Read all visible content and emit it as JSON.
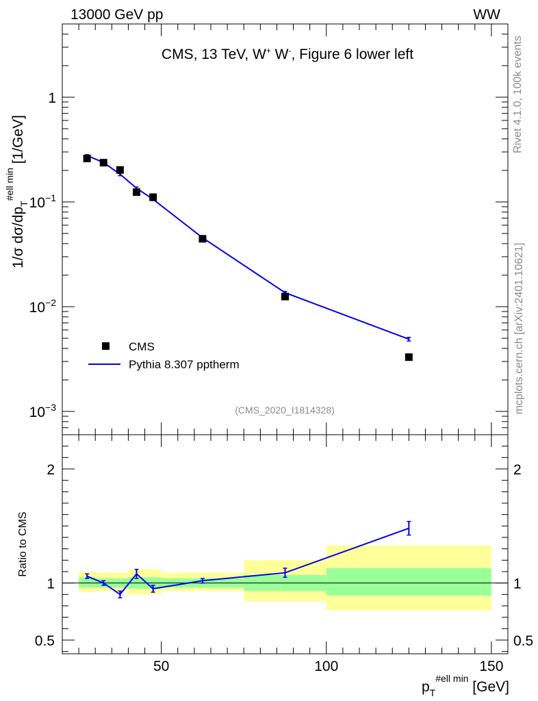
{
  "header": {
    "left": "13000 GeV pp",
    "right": "WW"
  },
  "side_labels": {
    "rivet": "Rivet 4.1.0,  100k events",
    "source": "mcplots.cern.ch [arXiv:2401.10621]"
  },
  "analysis_id": "(CMS_2020_I1814328)",
  "colors": {
    "data": "#000000",
    "mc": "#0000ee",
    "band_inner": "#99ff99",
    "band_outer": "#ffff99"
  },
  "chart_data": [
    {
      "type": "scatter",
      "panel": "main",
      "title": "CMS, 13 TeV, W⁺ W⁻, Figure 6 lower left",
      "xlabel": "p_T^{#ell min} [GeV]",
      "ylabel": "1/σ dσ/dp_T^{#ell min} [1/GeV]",
      "ylabel_parts": {
        "main": "1/σ dσ/dp",
        "sub": "T",
        "sup": "#ell min",
        "unit": "[1/GeV]"
      },
      "xlim": [
        20,
        155
      ],
      "ylim": [
        0.0006,
        5
      ],
      "yscale": "log",
      "yticks": [
        {
          "value": 1,
          "label": "1"
        },
        {
          "value": 0.1,
          "label": "10",
          "exp": "−1"
        },
        {
          "value": 0.01,
          "label": "10",
          "exp": "−2"
        },
        {
          "value": 0.001,
          "label": "10",
          "exp": "−3"
        }
      ],
      "legend": {
        "position": "bottom-left",
        "entries": [
          {
            "label": "CMS",
            "style": "marker"
          },
          {
            "label": "Pythia 8.307 pptherm",
            "style": "line"
          }
        ]
      },
      "series": [
        {
          "name": "CMS",
          "style": "marker",
          "x": [
            27.5,
            32.5,
            37.5,
            42.5,
            47.5,
            62.5,
            87.5,
            125
          ],
          "values": [
            0.26,
            0.237,
            0.202,
            0.124,
            0.111,
            0.0445,
            0.0125,
            0.0033
          ]
        },
        {
          "name": "Pythia 8.307 pptherm",
          "style": "line",
          "x": [
            27.5,
            32.5,
            37.5,
            42.5,
            47.5,
            62.5,
            87.5,
            125
          ],
          "values": [
            0.277,
            0.238,
            0.184,
            0.135,
            0.106,
            0.0455,
            0.0136,
            0.0049
          ],
          "errors": [
            0.006,
            0.005,
            0.006,
            0.004,
            0.003,
            0.001,
            0.0004,
            0.0002
          ]
        }
      ]
    },
    {
      "type": "line",
      "panel": "ratio",
      "xlabel": "p_T^{#ell min} [GeV]",
      "ylabel": "Ratio to CMS",
      "xlim": [
        20,
        155
      ],
      "ylim": [
        0.38,
        2.3
      ],
      "yticks": [
        {
          "value": 2,
          "label": "2"
        },
        {
          "value": 1,
          "label": "1"
        },
        {
          "value": 0.5,
          "label": "0.5"
        }
      ],
      "xticks": [
        {
          "value": 50,
          "label": "50"
        },
        {
          "value": 100,
          "label": "100"
        },
        {
          "value": 150,
          "label": "150"
        }
      ],
      "reference_line": 1,
      "bands": [
        {
          "x0": 25,
          "x1": 30,
          "inner": [
            0.96,
            1.05
          ],
          "outer": [
            0.92,
            1.1
          ]
        },
        {
          "x0": 30,
          "x1": 35,
          "inner": [
            0.96,
            1.04
          ],
          "outer": [
            0.93,
            1.09
          ]
        },
        {
          "x0": 35,
          "x1": 40,
          "inner": [
            0.96,
            1.04
          ],
          "outer": [
            0.93,
            1.09
          ]
        },
        {
          "x0": 40,
          "x1": 45,
          "inner": [
            0.95,
            1.05
          ],
          "outer": [
            0.9,
            1.12
          ]
        },
        {
          "x0": 45,
          "x1": 50,
          "inner": [
            0.95,
            1.05
          ],
          "outer": [
            0.9,
            1.12
          ]
        },
        {
          "x0": 50,
          "x1": 75,
          "inner": [
            0.96,
            1.04
          ],
          "outer": [
            0.93,
            1.09
          ]
        },
        {
          "x0": 75,
          "x1": 100,
          "inner": [
            0.93,
            1.07
          ],
          "outer": [
            0.84,
            1.2
          ]
        },
        {
          "x0": 100,
          "x1": 150,
          "inner": [
            0.89,
            1.13
          ],
          "outer": [
            0.76,
            1.33
          ]
        }
      ],
      "series": [
        {
          "name": "Pythia 8.307 pptherm",
          "x": [
            27.5,
            32.5,
            37.5,
            42.5,
            47.5,
            62.5,
            87.5,
            125
          ],
          "values": [
            1.06,
            1.0,
            0.9,
            1.08,
            0.95,
            1.02,
            1.09,
            1.48
          ],
          "errors": [
            0.02,
            0.02,
            0.03,
            0.04,
            0.03,
            0.02,
            0.04,
            0.06
          ]
        }
      ]
    }
  ]
}
